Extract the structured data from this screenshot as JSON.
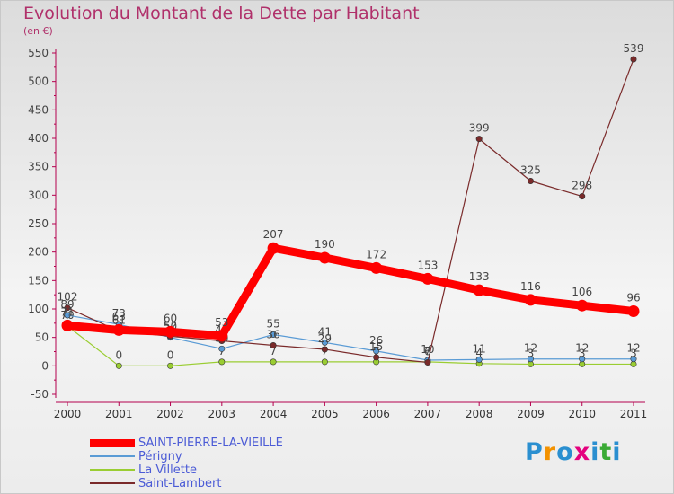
{
  "chart_data": {
    "type": "line",
    "title": "Evolution du Montant de la Dette par Habitant",
    "unit_label": "(en €)",
    "categories": [
      "2000",
      "2001",
      "2002",
      "2003",
      "2004",
      "2005",
      "2006",
      "2007",
      "2008",
      "2009",
      "2010",
      "2011"
    ],
    "ylim": [
      -50,
      550
    ],
    "yticks": [
      -50,
      0,
      50,
      100,
      150,
      200,
      250,
      300,
      350,
      400,
      450,
      500,
      550
    ],
    "grid": false,
    "legend_position": "bottom-left",
    "series": [
      {
        "name": "SAINT-PIERRE-LA-VIEILLE",
        "color": "#ff0000",
        "values": [
          71,
          63,
          60,
          53,
          207,
          190,
          172,
          153,
          133,
          116,
          106,
          96
        ],
        "labels": [
          "71",
          "63",
          "60",
          "53",
          "207",
          "190",
          "172",
          "153",
          "133",
          "116",
          "106",
          "96"
        ]
      },
      {
        "name": "Périgny",
        "color": "#5a9bd5",
        "values": [
          89,
          73,
          50,
          30,
          55,
          41,
          26,
          10,
          11,
          12,
          12,
          12
        ],
        "labels": [
          "89",
          "73",
          "50",
          "30",
          "55",
          "41",
          "26",
          "10",
          "11",
          "12",
          "12",
          "12"
        ]
      },
      {
        "name": "La Villette",
        "color": "#9acd32",
        "values": [
          70,
          0,
          0,
          7,
          7,
          7,
          7,
          7,
          4,
          3,
          3,
          3
        ],
        "labels": [
          "70",
          "0",
          "0",
          "7",
          "7",
          "7",
          "7",
          "7",
          "4",
          "3",
          "3",
          "3"
        ]
      },
      {
        "name": "Saint-Lambert",
        "color": "#7a2a2a",
        "values": [
          102,
          61,
          52,
          44,
          36,
          29,
          15,
          6,
          399,
          325,
          298,
          539
        ],
        "labels": [
          "102",
          "61",
          "52",
          "44",
          "36",
          "29",
          "15",
          "6",
          "399",
          "325",
          "298",
          "539"
        ]
      }
    ]
  },
  "logo": {
    "text": "Proxiti",
    "colors": [
      "#2a8fd0",
      "#f39200",
      "#2a8fd0",
      "#e4007e",
      "#2a8fd0",
      "#3aaa35",
      "#2a8fd0"
    ]
  }
}
